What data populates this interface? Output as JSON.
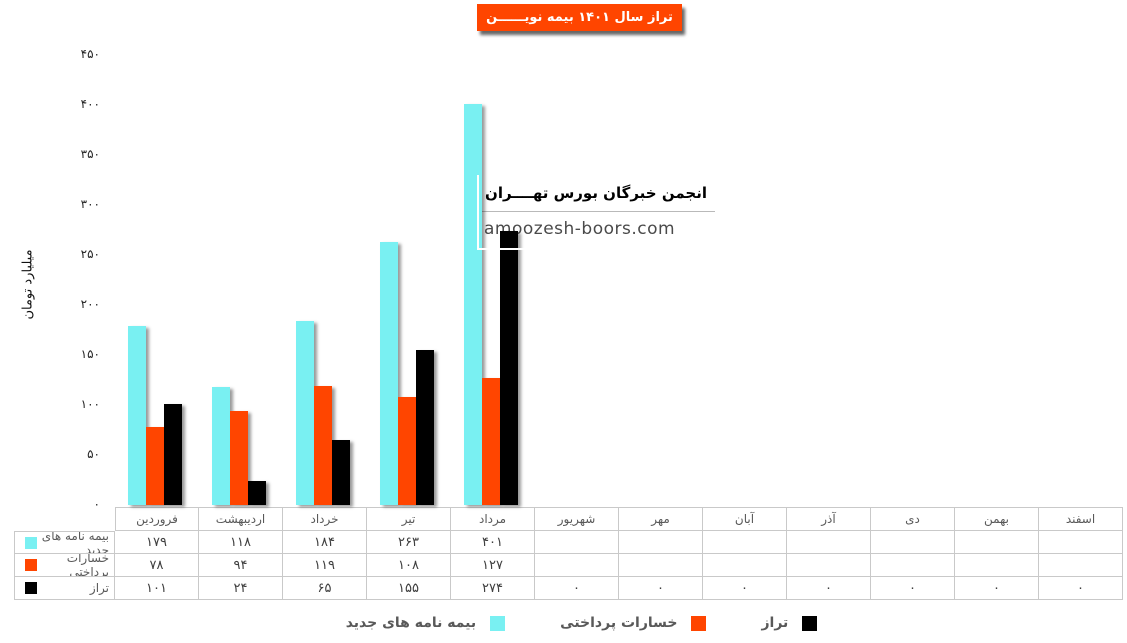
{
  "title": {
    "text": "تراز سال ۱۴۰۱ بیمه نویــــــن",
    "bg_color": "#FF4500",
    "text_color": "#FFFFFF"
  },
  "watermark": {
    "line1": "انجمن خبرگان بورس تهــــران",
    "line2": "amoozesh-boors.com"
  },
  "y_axis": {
    "label": "میلیارد تومان",
    "tick_values": [
      0,
      50,
      100,
      150,
      200,
      250,
      300,
      350,
      400,
      450
    ],
    "tick_labels": [
      "۰",
      "۵۰",
      "۱۰۰",
      "۱۵۰",
      "۲۰۰",
      "۲۵۰",
      "۳۰۰",
      "۳۵۰",
      "۴۰۰",
      "۴۵۰"
    ]
  },
  "months": [
    "فروردین",
    "اردیبهشت",
    "خرداد",
    "تیر",
    "مرداد",
    "شهریور",
    "مهر",
    "آبان",
    "آذر",
    "دی",
    "بهمن",
    "اسفند"
  ],
  "chart_data": {
    "type": "bar",
    "title": "تراز سال ۱۴۰۱ بیمه نویــــــن",
    "ylabel": "میلیارد تومان",
    "ylim": [
      0,
      450
    ],
    "grid": false,
    "legend_position": "bottom",
    "categories": [
      "فروردین",
      "اردیبهشت",
      "خرداد",
      "تیر",
      "مرداد",
      "شهریور",
      "مهر",
      "آبان",
      "آذر",
      "دی",
      "بهمن",
      "اسفند"
    ],
    "series": [
      {
        "name": "بیمه نامه های جدید",
        "color": "#79F0F2",
        "values": [
          179,
          118,
          184,
          263,
          401,
          null,
          null,
          null,
          null,
          null,
          null,
          null
        ],
        "display_values": [
          "۱۷۹",
          "۱۱۸",
          "۱۸۴",
          "۲۶۳",
          "۴۰۱",
          "",
          "",
          "",
          "",
          "",
          "",
          ""
        ]
      },
      {
        "name": "خسارات پرداختی",
        "color": "#FF4500",
        "values": [
          78,
          94,
          119,
          108,
          127,
          null,
          null,
          null,
          null,
          null,
          null,
          null
        ],
        "display_values": [
          "۷۸",
          "۹۴",
          "۱۱۹",
          "۱۰۸",
          "۱۲۷",
          "",
          "",
          "",
          "",
          "",
          "",
          ""
        ]
      },
      {
        "name": "تراز",
        "color": "#000000",
        "values": [
          101,
          24,
          65,
          155,
          274,
          0,
          0,
          0,
          0,
          0,
          0,
          0
        ],
        "display_values": [
          "۱۰۱",
          "۲۴",
          "۶۵",
          "۱۵۵",
          "۲۷۴",
          "۰",
          "۰",
          "۰",
          "۰",
          "۰",
          "۰",
          "۰"
        ]
      }
    ]
  },
  "legend": [
    {
      "label": "بیمه نامه های جدید",
      "color": "#79F0F2"
    },
    {
      "label": "خسارات پرداختی",
      "color": "#FF4500"
    },
    {
      "label": "تراز",
      "color": "#000000"
    }
  ]
}
